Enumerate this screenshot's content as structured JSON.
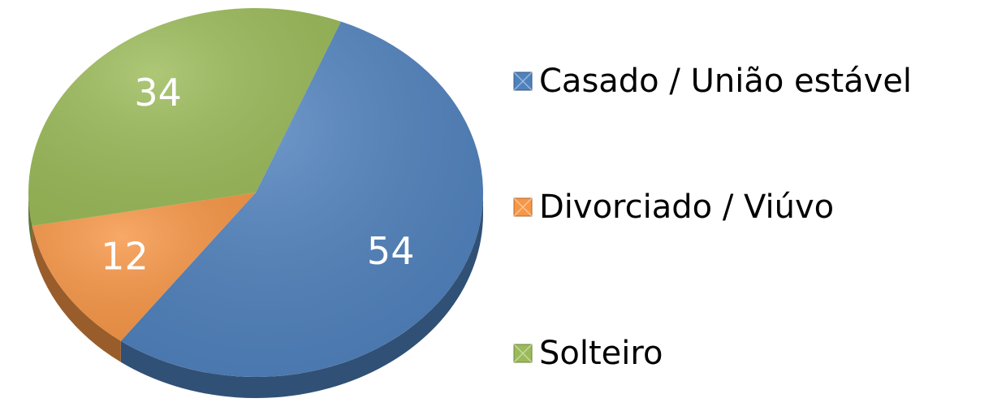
{
  "chart_data": {
    "type": "pie",
    "categories": [
      "Casado / União estável",
      "Divorciado / Viúvo",
      "Solteiro"
    ],
    "values": [
      54,
      12,
      34
    ],
    "colors": [
      "#4f81bd",
      "#f79646",
      "#9bbb59"
    ],
    "legend": "right"
  }
}
